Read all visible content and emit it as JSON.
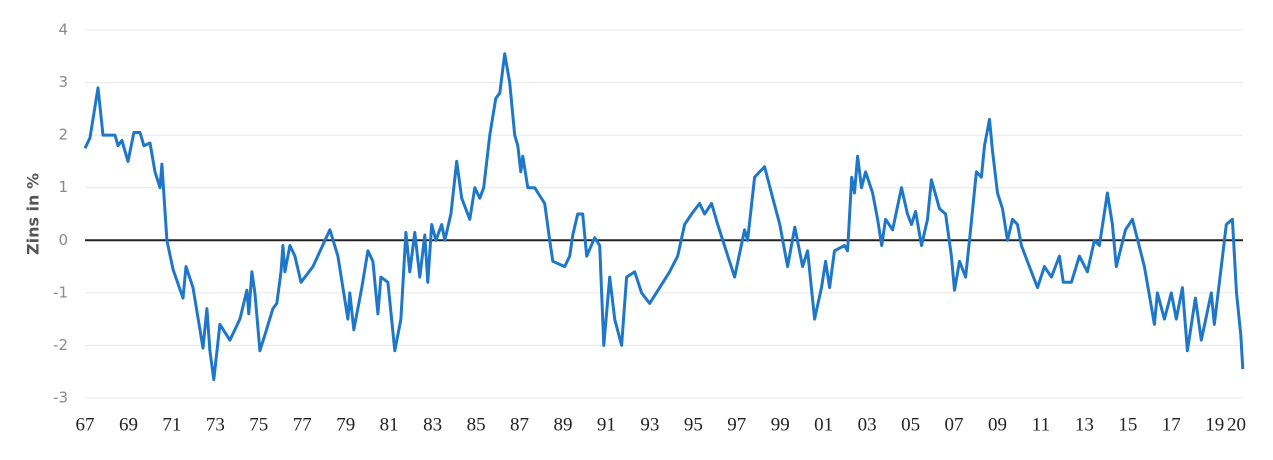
{
  "chart_data": {
    "type": "line",
    "y_label": "Zins in %",
    "color": "#1f77c9",
    "grid": true,
    "xlim": [
      1967,
      2020.3
    ],
    "ylim": [
      -3,
      4
    ],
    "yticks": [
      -3,
      -2,
      -1,
      0,
      1,
      2,
      3,
      4
    ],
    "xticks": [
      {
        "value": 1967,
        "label": "67"
      },
      {
        "value": 1969,
        "label": "69"
      },
      {
        "value": 1971,
        "label": "71"
      },
      {
        "value": 1973,
        "label": "73"
      },
      {
        "value": 1975,
        "label": "75"
      },
      {
        "value": 1977,
        "label": "77"
      },
      {
        "value": 1979,
        "label": "79"
      },
      {
        "value": 1981,
        "label": "81"
      },
      {
        "value": 1983,
        "label": "83"
      },
      {
        "value": 1985,
        "label": "85"
      },
      {
        "value": 1987,
        "label": "87"
      },
      {
        "value": 1989,
        "label": "89"
      },
      {
        "value": 1991,
        "label": "91"
      },
      {
        "value": 1993,
        "label": "93"
      },
      {
        "value": 1995,
        "label": "95"
      },
      {
        "value": 1997,
        "label": "97"
      },
      {
        "value": 1999,
        "label": "99"
      },
      {
        "value": 2001,
        "label": "01"
      },
      {
        "value": 2003,
        "label": "03"
      },
      {
        "value": 2005,
        "label": "05"
      },
      {
        "value": 2007,
        "label": "07"
      },
      {
        "value": 2009,
        "label": "09"
      },
      {
        "value": 2011,
        "label": "11"
      },
      {
        "value": 2013,
        "label": "13"
      },
      {
        "value": 2015,
        "label": "15"
      },
      {
        "value": 2017,
        "label": "17"
      },
      {
        "value": 2019,
        "label": "19"
      },
      {
        "value": 2020,
        "label": "20"
      }
    ],
    "x": [
      1967,
      1967.23,
      1967.6,
      1967.83,
      1968.38,
      1968.52,
      1968.7,
      1968.98,
      1969.25,
      1969.53,
      1969.71,
      1969.99,
      1970.22,
      1970.45,
      1970.54,
      1970.77,
      1971.05,
      1971.51,
      1971.65,
      1971.97,
      1972.43,
      1972.61,
      1972.75,
      1972.93,
      1973.21,
      1973.67,
      1974.13,
      1974.45,
      1974.54,
      1974.68,
      1974.82,
      1975.05,
      1975.28,
      1975.65,
      1975.83,
      1976.02,
      1976.11,
      1976.2,
      1976.43,
      1976.66,
      1976.94,
      1977.49,
      1978.27,
      1978.64,
      1979.1,
      1979.19,
      1979.37,
      1979.74,
      1980.02,
      1980.25,
      1980.48,
      1980.62,
      1980.94,
      1981.26,
      1981.54,
      1981.77,
      1981.95,
      1982.18,
      1982.41,
      1982.64,
      1982.78,
      1982.96,
      1983.15,
      1983.42,
      1983.56,
      1983.84,
      1984.11,
      1984.34,
      1984.71,
      1984.94,
      1985.17,
      1985.35,
      1985.63,
      1985.91,
      1986.09,
      1986.32,
      1986.55,
      1986.78,
      1986.92,
      1987.06,
      1987.15,
      1987.38,
      1987.7,
      1988.16,
      1988.39,
      1988.53,
      1989.08,
      1989.31,
      1989.45,
      1989.68,
      1989.91,
      1990.09,
      1990.46,
      1990.69,
      1990.88,
      1991.15,
      1991.38,
      1991.7,
      1991.93,
      1992.3,
      1992.62,
      1992.99,
      1993.45,
      1993.91,
      1994.28,
      1994.6,
      1994.92,
      1995.29,
      1995.52,
      1995.84,
      1996.12,
      1996.9,
      1997.36,
      1997.5,
      1997.82,
      1998.28,
      1998.66,
      1998.98,
      1999.34,
      1999.67,
      2000.03,
      2000.26,
      2000.58,
      2000.9,
      2001.09,
      2001.27,
      2001.5,
      2001.96,
      2002.1,
      2002.29,
      2002.42,
      2002.56,
      2002.74,
      2002.93,
      2003.25,
      2003.48,
      2003.67,
      2003.85,
      2004.17,
      2004.58,
      2004.86,
      2005.04,
      2005.23,
      2005.5,
      2005.78,
      2005.96,
      2006.33,
      2006.61,
      2006.88,
      2007.02,
      2007.25,
      2007.53,
      2007.71,
      2008.03,
      2008.26,
      2008.4,
      2008.63,
      2008.77,
      2009.0,
      2009.23,
      2009.46,
      2009.69,
      2009.92,
      2010.1,
      2010.47,
      2010.84,
      2011.16,
      2011.48,
      2011.85,
      2012.03,
      2012.4,
      2012.77,
      2013.14,
      2013.46,
      2013.69,
      2014.06,
      2014.29,
      2014.47,
      2014.89,
      2015.21,
      2015.76,
      2016.22,
      2016.36,
      2016.68,
      2017.0,
      2017.23,
      2017.51,
      2017.74,
      2018.11,
      2018.38,
      2018.84,
      2018.98,
      2019.3,
      2019.53,
      2019.81,
      2020.0,
      2020.2,
      2020.29
    ],
    "values": [
      1.75,
      1.95,
      2.9,
      2.0,
      2.0,
      1.8,
      1.9,
      1.5,
      2.05,
      2.05,
      1.8,
      1.85,
      1.3,
      1.0,
      1.45,
      0.0,
      -0.55,
      -1.1,
      -0.5,
      -0.9,
      -2.05,
      -1.3,
      -2.1,
      -2.65,
      -1.6,
      -1.9,
      -1.5,
      -0.95,
      -1.4,
      -0.6,
      -1.0,
      -2.1,
      -1.8,
      -1.3,
      -1.2,
      -0.6,
      -0.1,
      -0.6,
      -0.1,
      -0.3,
      -0.8,
      -0.5,
      0.2,
      -0.3,
      -1.5,
      -1.0,
      -1.7,
      -0.9,
      -0.2,
      -0.4,
      -1.4,
      -0.7,
      -0.8,
      -2.1,
      -1.5,
      0.15,
      -0.6,
      0.15,
      -0.7,
      0.1,
      -0.8,
      0.3,
      0.0,
      0.3,
      0.0,
      0.5,
      1.5,
      0.8,
      0.4,
      1.0,
      0.8,
      1.0,
      2.0,
      2.7,
      2.8,
      3.55,
      3.0,
      2.0,
      1.8,
      1.3,
      1.6,
      1.0,
      1.0,
      0.7,
      0.0,
      -0.4,
      -0.5,
      -0.3,
      0.1,
      0.5,
      0.5,
      -0.3,
      0.05,
      -0.1,
      -2.0,
      -0.7,
      -1.5,
      -2.0,
      -0.7,
      -0.6,
      -1.0,
      -1.2,
      -0.9,
      -0.6,
      -0.3,
      0.3,
      0.5,
      0.7,
      0.5,
      0.7,
      0.3,
      -0.7,
      0.2,
      0.0,
      1.2,
      1.4,
      0.8,
      0.3,
      -0.5,
      0.25,
      -0.5,
      -0.2,
      -1.5,
      -0.9,
      -0.4,
      -0.9,
      -0.2,
      -0.1,
      -0.2,
      1.2,
      0.9,
      1.6,
      1.0,
      1.3,
      0.9,
      0.4,
      -0.1,
      0.4,
      0.2,
      1.0,
      0.5,
      0.3,
      0.55,
      -0.1,
      0.4,
      1.15,
      0.6,
      0.5,
      -0.3,
      -0.95,
      -0.4,
      -0.7,
      0.0,
      1.3,
      1.2,
      1.8,
      2.3,
      1.7,
      0.9,
      0.6,
      0.0,
      0.4,
      0.3,
      -0.1,
      -0.5,
      -0.9,
      -0.5,
      -0.7,
      -0.3,
      -0.8,
      -0.8,
      -0.3,
      -0.6,
      0.0,
      -0.1,
      0.9,
      0.3,
      -0.5,
      0.2,
      0.4,
      -0.5,
      -1.6,
      -1.0,
      -1.5,
      -1.0,
      -1.5,
      -0.9,
      -2.1,
      -1.1,
      -1.9,
      -1.0,
      -1.6,
      -0.5,
      0.3,
      0.4,
      -1.0,
      -1.8,
      -2.45
    ]
  }
}
